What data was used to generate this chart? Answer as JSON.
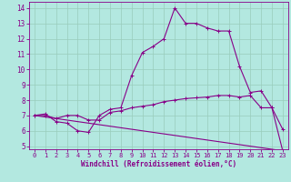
{
  "xlabel": "Windchill (Refroidissement éolien,°C)",
  "background_color": "#b3e8e0",
  "line_color": "#880088",
  "grid_color": "#99ccbb",
  "xlim": [
    -0.5,
    23.5
  ],
  "ylim": [
    4.8,
    14.4
  ],
  "xticks": [
    0,
    1,
    2,
    3,
    4,
    5,
    6,
    7,
    8,
    9,
    10,
    11,
    12,
    13,
    14,
    15,
    16,
    17,
    18,
    19,
    20,
    21,
    22,
    23
  ],
  "yticks": [
    5,
    6,
    7,
    8,
    9,
    10,
    11,
    12,
    13,
    14
  ],
  "line1_x": [
    0,
    1,
    2,
    3,
    4,
    5,
    6,
    7,
    8,
    9,
    10,
    11,
    12,
    13,
    14,
    15,
    16,
    17,
    18,
    19,
    20,
    21,
    22,
    23
  ],
  "line1_y": [
    7.0,
    7.1,
    6.6,
    6.5,
    6.0,
    5.9,
    7.0,
    7.4,
    7.5,
    9.6,
    11.1,
    11.5,
    12.0,
    14.0,
    13.0,
    13.0,
    12.7,
    12.5,
    12.5,
    10.2,
    8.5,
    8.6,
    7.5,
    6.1
  ],
  "line2_x": [
    0,
    1,
    2,
    3,
    4,
    5,
    6,
    7,
    8,
    9,
    10,
    11,
    12,
    13,
    14,
    15,
    16,
    17,
    18,
    19,
    20,
    21,
    22,
    23
  ],
  "line2_y": [
    7.0,
    7.0,
    6.8,
    7.0,
    7.0,
    6.7,
    6.7,
    7.2,
    7.3,
    7.5,
    7.6,
    7.7,
    7.9,
    8.0,
    8.1,
    8.15,
    8.2,
    8.3,
    8.3,
    8.2,
    8.3,
    7.5,
    7.5,
    4.7
  ],
  "line3_x": [
    0,
    23
  ],
  "line3_y": [
    7.0,
    4.7
  ]
}
